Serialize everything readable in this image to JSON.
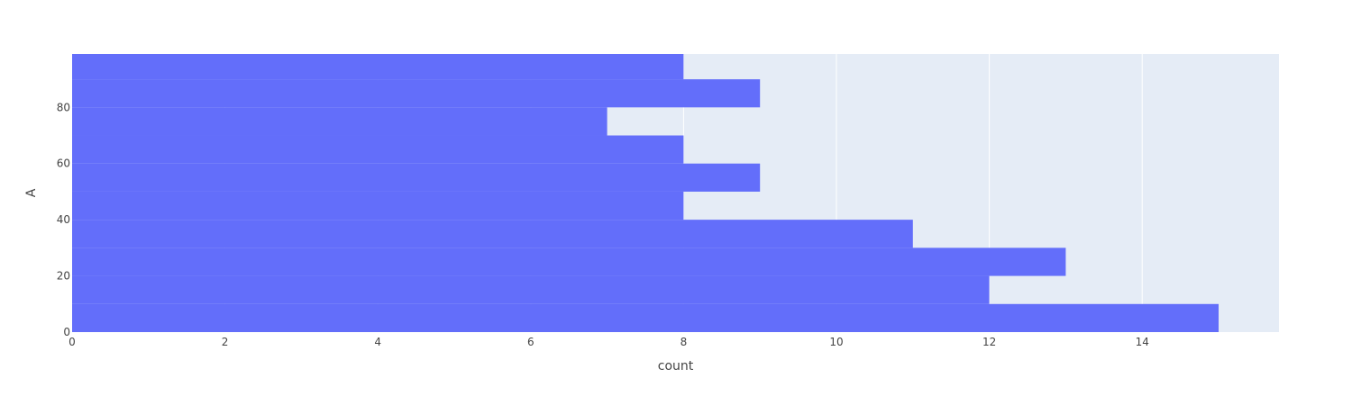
{
  "chart_data": {
    "type": "bar",
    "orientation": "horizontal",
    "xlabel": "count",
    "ylabel": "A",
    "xlim": [
      0,
      15.79
    ],
    "ylim": [
      0,
      99
    ],
    "x_ticks": [
      0,
      2,
      4,
      6,
      8,
      10,
      12,
      14
    ],
    "y_ticks": [
      0,
      20,
      40,
      60,
      80
    ],
    "bin_width": 10,
    "bins": [
      {
        "start": 0,
        "end": 10,
        "count": 15
      },
      {
        "start": 10,
        "end": 20,
        "count": 12
      },
      {
        "start": 20,
        "end": 30,
        "count": 13
      },
      {
        "start": 30,
        "end": 40,
        "count": 11
      },
      {
        "start": 40,
        "end": 50,
        "count": 8
      },
      {
        "start": 50,
        "end": 60,
        "count": 9
      },
      {
        "start": 60,
        "end": 70,
        "count": 8
      },
      {
        "start": 70,
        "end": 80,
        "count": 7
      },
      {
        "start": 80,
        "end": 90,
        "count": 9
      },
      {
        "start": 90,
        "end": 100,
        "count": 8
      }
    ],
    "colors": {
      "bar": "#636efa",
      "plot_background": "#e5ecf6",
      "grid": "#ffffff",
      "text": "#444444"
    },
    "grid": true
  }
}
